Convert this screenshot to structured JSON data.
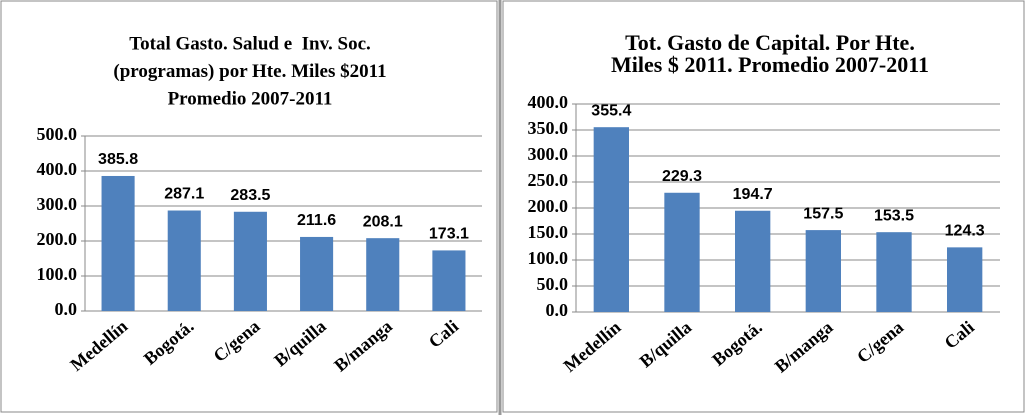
{
  "chart_data": [
    {
      "type": "bar",
      "title": [
        "Total Gasto. Salud e  Inv. Soc.",
        "(programas) por Hte. Miles $2011",
        "Promedio 2007-2011"
      ],
      "categories": [
        "Medellín",
        "Bogotá.",
        "C/gena",
        "B/quilla",
        "B/manga",
        "Cali"
      ],
      "values": [
        385.8,
        287.1,
        283.5,
        211.6,
        208.1,
        173.1
      ],
      "color": "#4f81bd",
      "ylim": [
        0,
        500
      ],
      "yticks": [
        {
          "value": 0,
          "label": "0.0"
        },
        {
          "value": 100,
          "label": "100.0"
        },
        {
          "value": 200,
          "label": "200.0"
        },
        {
          "value": 300,
          "label": "300.0"
        },
        {
          "value": 400,
          "label": "400.0"
        },
        {
          "value": 500,
          "label": "500.0"
        }
      ],
      "grid": true
    },
    {
      "type": "bar",
      "title": [
        "Tot. Gasto de Capital. Por Hte.",
        "Miles $ 2011. Promedio 2007-2011"
      ],
      "categories": [
        "Medellín",
        "B/quilla",
        "Bogotá.",
        "B/manga",
        "C/gena",
        "Cali"
      ],
      "values": [
        355.4,
        229.3,
        194.7,
        157.5,
        153.5,
        124.3
      ],
      "color": "#4f81bd",
      "ylim": [
        0,
        400
      ],
      "yticks": [
        {
          "value": 0,
          "label": "0.0"
        },
        {
          "value": 50,
          "label": "50.0"
        },
        {
          "value": 100,
          "label": "100.0"
        },
        {
          "value": 150,
          "label": "150.0"
        },
        {
          "value": 200,
          "label": "200.0"
        },
        {
          "value": 250,
          "label": "250.0"
        },
        {
          "value": 300,
          "label": "300.0"
        },
        {
          "value": 350,
          "label": "350.0"
        },
        {
          "value": 400,
          "label": "400.0"
        }
      ],
      "grid": true
    }
  ]
}
